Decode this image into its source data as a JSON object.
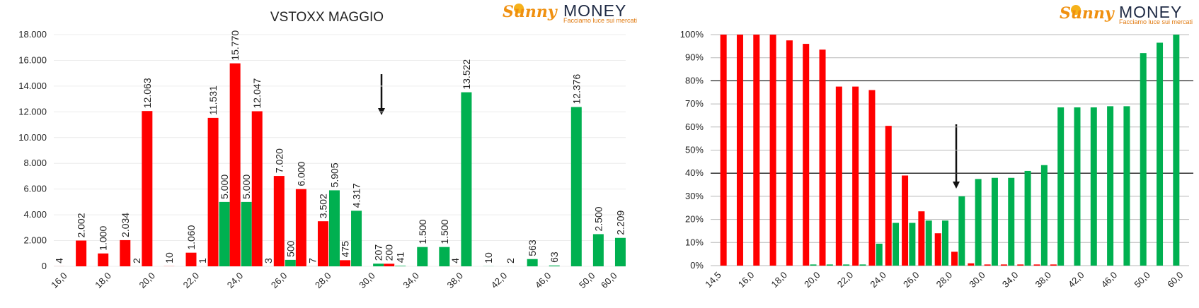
{
  "logos": [
    {
      "brand": "Sunny",
      "name": "MONEY",
      "tagline": "Facciamo luce sui mercati"
    },
    {
      "brand": "Sunny",
      "name": "MONEY",
      "tagline": "Facciamo luce sui mercati"
    }
  ],
  "chart_data": [
    {
      "type": "bar",
      "title": "VSTOXX MAGGIO",
      "categories": [
        "16,0",
        null,
        "18,0",
        null,
        "20,0",
        null,
        "22,0",
        null,
        "24,0",
        null,
        "26,0",
        null,
        "28,0",
        null,
        "30,0",
        null,
        "34,0",
        null,
        "38,0",
        null,
        "42,0",
        null,
        "46,0",
        null,
        "50,0",
        "60,0"
      ],
      "series": [
        {
          "color": "#ff0000",
          "values": [
            4,
            2002,
            1000,
            2034,
            12063,
            10,
            1060,
            11531,
            15770,
            12047,
            7020,
            6000,
            3502,
            475,
            null,
            200,
            null,
            null,
            4,
            null,
            null,
            null,
            null,
            null,
            null,
            null
          ],
          "value_labels": [
            "4",
            "2.002",
            "1.000",
            "2.034",
            "12.063",
            "10",
            "1.060",
            "11.531",
            "15.770",
            "12.047",
            "7.020",
            "6.000",
            "3.502",
            "475",
            null,
            "200",
            null,
            null,
            "4",
            null,
            null,
            null,
            null,
            null,
            null,
            null
          ]
        },
        {
          "color": "#00b050",
          "values": [
            null,
            null,
            null,
            2,
            null,
            null,
            1,
            5000,
            5000,
            3,
            500,
            7,
            5905,
            4317,
            207,
            41,
            1500,
            1500,
            13522,
            10,
            2,
            563,
            63,
            12376,
            2500,
            2209
          ],
          "value_labels": [
            null,
            null,
            null,
            "2",
            null,
            null,
            "1",
            "5.000",
            "5.000",
            "3",
            "500",
            "7",
            "5.905",
            "4.317",
            "207",
            "41",
            "1.500",
            "1.500",
            "13.522",
            "10",
            "2",
            "563",
            "63",
            "12.376",
            "2.500",
            "2.209"
          ]
        }
      ],
      "ylim": [
        0,
        18000
      ],
      "yticks": [
        0,
        {
          "value": 2000,
          "label": "2.000"
        },
        {
          "value": 4000,
          "label": "4.000"
        },
        {
          "value": 6000,
          "label": "6.000"
        },
        {
          "value": 8000,
          "label": "8.000"
        },
        {
          "value": 10000,
          "label": "10.000"
        },
        {
          "value": 12000,
          "label": "12.000"
        },
        {
          "value": 14000,
          "label": "14.000"
        },
        {
          "value": 16000,
          "label": "16.000"
        },
        {
          "value": 18000,
          "label": "18.000"
        }
      ],
      "grid": true
    },
    {
      "type": "bar",
      "categories": [
        "14,5",
        null,
        "16,0",
        null,
        "18,0",
        null,
        "20,0",
        null,
        "22,0",
        null,
        "24,0",
        null,
        "26,0",
        null,
        "28,0",
        null,
        "30,0",
        null,
        "34,0",
        null,
        "38,0",
        null,
        "42,0",
        null,
        "46,0",
        null,
        "50,0",
        null,
        "60,0"
      ],
      "series": [
        {
          "color": "#00b050",
          "values": [
            0,
            0,
            0,
            0,
            0,
            0,
            0.5,
            0.5,
            0.5,
            0.5,
            9.5,
            18.5,
            18.5,
            19.5,
            19.5,
            30,
            37.5,
            38,
            38,
            41,
            43.5,
            68.5,
            68.5,
            68.5,
            69,
            69,
            92,
            96.5,
            100
          ]
        },
        {
          "color": "#ff0000",
          "values": [
            100,
            100,
            100,
            100,
            97.5,
            96,
            93.5,
            77.5,
            77.5,
            76,
            60.5,
            39,
            23.5,
            14,
            6,
            1,
            0.5,
            0.5,
            0.5,
            0.5,
            0.5,
            0,
            0,
            0,
            0,
            0,
            0,
            0,
            0
          ]
        }
      ],
      "ylim": [
        0,
        100
      ],
      "yticks": [
        {
          "value": 0,
          "label": "0%"
        },
        {
          "value": 10,
          "label": "10%"
        },
        {
          "value": 20,
          "label": "20%"
        },
        {
          "value": 30,
          "label": "30%"
        },
        {
          "value": 40,
          "label": "40%"
        },
        {
          "value": 50,
          "label": "50%"
        },
        {
          "value": 60,
          "label": "60%"
        },
        {
          "value": 70,
          "label": "70%"
        },
        {
          "value": 80,
          "label": "80%"
        },
        {
          "value": 90,
          "label": "90%"
        },
        {
          "value": 100,
          "label": "100%"
        }
      ],
      "grid": true,
      "reference_lines": [
        40,
        80
      ]
    }
  ]
}
